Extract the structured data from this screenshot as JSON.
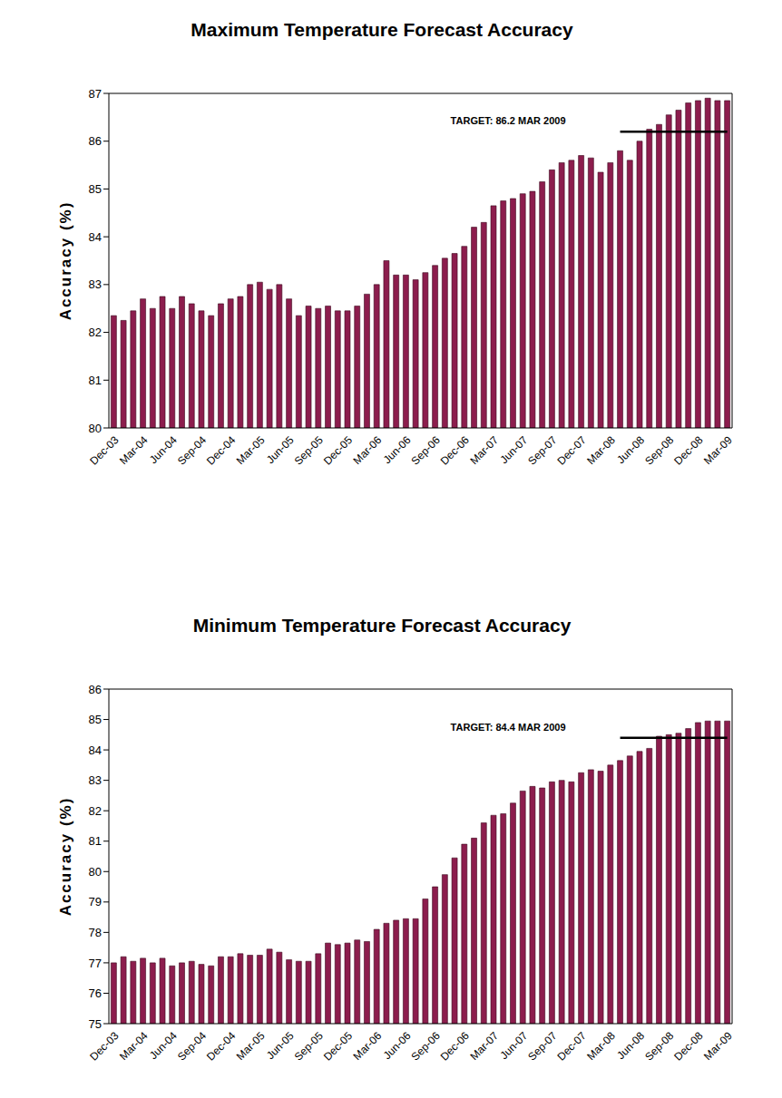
{
  "chart_data": [
    {
      "type": "bar",
      "title": "Maximum Temperature Forecast Accuracy",
      "y_label": "Accuracy (%)",
      "categories": [
        "Dec-03",
        null,
        null,
        "Mar-04",
        null,
        null,
        "Jun-04",
        null,
        null,
        "Sep-04",
        null,
        null,
        "Dec-04",
        null,
        null,
        "Mar-05",
        null,
        null,
        "Jun-05",
        null,
        null,
        "Sep-05",
        null,
        null,
        "Dec-05",
        null,
        null,
        "Mar-06",
        null,
        null,
        "Jun-06",
        null,
        null,
        "Sep-06",
        null,
        null,
        "Dec-06",
        null,
        null,
        "Mar-07",
        null,
        null,
        "Jun-07",
        null,
        null,
        "Sep-07",
        null,
        null,
        "Dec-07",
        null,
        null,
        "Mar-08",
        null,
        null,
        "Jun-08",
        null,
        null,
        "Sep-08",
        null,
        null,
        "Dec-08",
        null,
        null,
        "Mar-09"
      ],
      "values": [
        82.35,
        82.25,
        82.45,
        82.7,
        82.5,
        82.75,
        82.5,
        82.75,
        82.6,
        82.45,
        82.35,
        82.6,
        82.7,
        82.75,
        83.0,
        83.05,
        82.9,
        83.0,
        82.7,
        82.35,
        82.55,
        82.5,
        82.55,
        82.45,
        82.45,
        82.55,
        82.8,
        83.0,
        83.5,
        83.2,
        83.2,
        83.1,
        83.25,
        83.4,
        83.55,
        83.65,
        83.8,
        84.2,
        84.3,
        84.65,
        84.75,
        84.8,
        84.9,
        84.95,
        85.15,
        85.4,
        85.55,
        85.6,
        85.7,
        85.65,
        85.35,
        85.55,
        85.8,
        85.6,
        86.0,
        86.25,
        86.35,
        86.55,
        86.65,
        86.8,
        86.85,
        86.9,
        86.85,
        86.85
      ],
      "color": "#8c1d4d",
      "ylim": [
        80,
        87
      ],
      "yticks": [
        80,
        81,
        82,
        83,
        84,
        85,
        86,
        87
      ],
      "grid": false,
      "annotations": [
        {
          "text": "TARGET: 86.2 MAR 2009",
          "value": 86.2,
          "x_start": 52
        }
      ]
    },
    {
      "type": "bar",
      "title": "Minimum Temperature Forecast Accuracy",
      "y_label": "Accuracy (%)",
      "categories": [
        "Dec-03",
        null,
        null,
        "Mar-04",
        null,
        null,
        "Jun-04",
        null,
        null,
        "Sep-04",
        null,
        null,
        "Dec-04",
        null,
        null,
        "Mar-05",
        null,
        null,
        "Jun-05",
        null,
        null,
        "Sep-05",
        null,
        null,
        "Dec-05",
        null,
        null,
        "Mar-06",
        null,
        null,
        "Jun-06",
        null,
        null,
        "Sep-06",
        null,
        null,
        "Dec-06",
        null,
        null,
        "Mar-07",
        null,
        null,
        "Jun-07",
        null,
        null,
        "Sep-07",
        null,
        null,
        "Dec-07",
        null,
        null,
        "Mar-08",
        null,
        null,
        "Jun-08",
        null,
        null,
        "Sep-08",
        null,
        null,
        "Dec-08",
        null,
        null,
        "Mar-09"
      ],
      "values": [
        77.0,
        77.2,
        77.05,
        77.15,
        77.0,
        77.15,
        76.9,
        77.0,
        77.05,
        76.95,
        76.9,
        77.2,
        77.2,
        77.3,
        77.25,
        77.25,
        77.45,
        77.35,
        77.1,
        77.05,
        77.05,
        77.3,
        77.65,
        77.6,
        77.65,
        77.75,
        77.7,
        78.1,
        78.3,
        78.4,
        78.45,
        78.45,
        79.1,
        79.5,
        79.9,
        80.45,
        80.9,
        81.1,
        81.6,
        81.85,
        81.9,
        82.25,
        82.65,
        82.8,
        82.75,
        82.95,
        83.0,
        82.95,
        83.25,
        83.35,
        83.3,
        83.5,
        83.65,
        83.8,
        83.95,
        84.05,
        84.45,
        84.5,
        84.55,
        84.7,
        84.9,
        84.95,
        84.95,
        84.95
      ],
      "color": "#8c1d4d",
      "ylim": [
        75,
        86
      ],
      "yticks": [
        75,
        76,
        77,
        78,
        79,
        80,
        81,
        82,
        83,
        84,
        85,
        86
      ],
      "grid": false,
      "annotations": [
        {
          "text": "TARGET: 84.4 MAR 2009",
          "value": 84.4,
          "x_start": 52
        }
      ]
    }
  ]
}
